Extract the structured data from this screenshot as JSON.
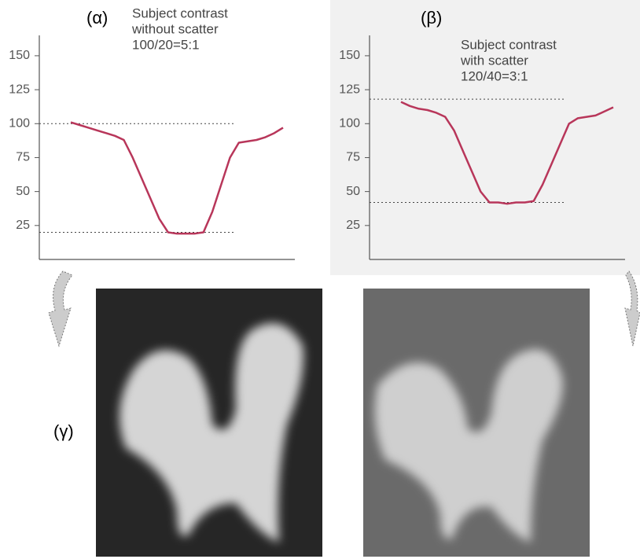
{
  "chart_data": [
    {
      "type": "line",
      "panel_label": "(α)",
      "annotation": [
        "Subject contrast",
        "without scatter",
        "100/20=5:1"
      ],
      "categories": [
        null,
        null,
        null,
        null,
        null,
        null,
        null,
        null,
        null,
        null,
        null,
        null,
        null,
        null,
        null,
        null,
        null,
        null,
        null,
        null,
        null,
        null,
        null,
        null,
        null
      ],
      "series": [
        {
          "color": "#b8365a",
          "values": [
            101,
            99,
            97,
            95,
            93,
            91,
            88,
            75,
            60,
            45,
            30,
            20,
            19,
            19,
            19,
            20,
            35,
            55,
            75,
            86,
            87,
            88,
            90,
            93,
            97
          ]
        }
      ],
      "reference_lines": [
        100,
        20
      ],
      "ylim": [
        0,
        165
      ],
      "yticks": [
        25,
        50,
        75,
        100,
        125,
        150
      ],
      "background": "#ffffff"
    },
    {
      "type": "line",
      "panel_label": "(β)",
      "annotation": [
        "Subject contrast",
        "with scatter",
        "120/40=3:1"
      ],
      "categories": [
        null,
        null,
        null,
        null,
        null,
        null,
        null,
        null,
        null,
        null,
        null,
        null,
        null,
        null,
        null,
        null,
        null,
        null,
        null,
        null,
        null,
        null,
        null,
        null,
        null
      ],
      "series": [
        {
          "color": "#b8365a",
          "values": [
            116,
            113,
            111,
            110,
            108,
            105,
            95,
            80,
            65,
            50,
            42,
            42,
            41,
            42,
            42,
            43,
            55,
            70,
            85,
            100,
            104,
            105,
            106,
            109,
            112
          ]
        }
      ],
      "reference_lines": [
        118,
        42
      ],
      "ylim": [
        0,
        165
      ],
      "yticks": [
        25,
        50,
        75,
        100,
        125,
        150
      ],
      "background": "#f1f1f1"
    }
  ],
  "image_label": "(γ)"
}
